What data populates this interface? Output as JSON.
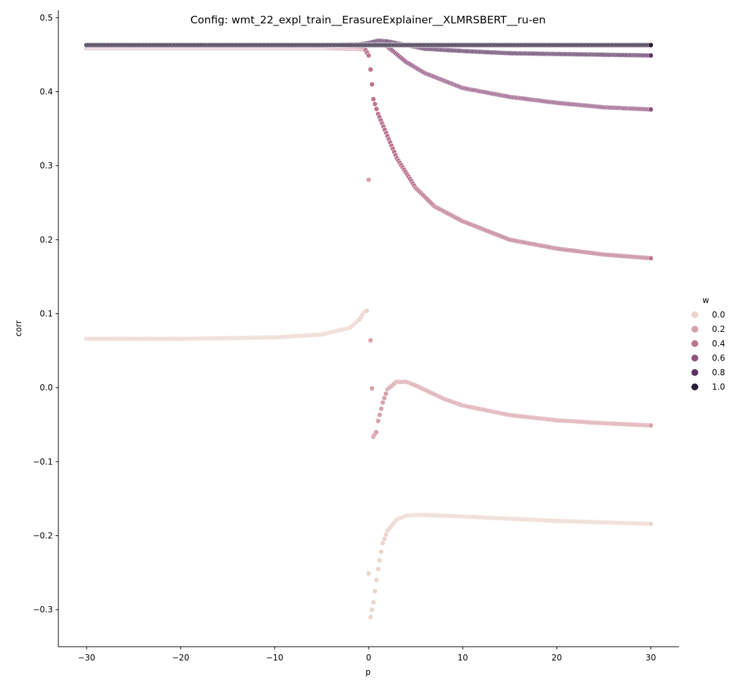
{
  "chart_data": {
    "type": "scatter",
    "title": "Config: wmt_22_expl_train__ErasureExplainer__XLMRSBERT__ru-en",
    "xlabel": "p",
    "ylabel": "corr",
    "xlim": [
      -33,
      33
    ],
    "ylim": [
      -0.35,
      0.51
    ],
    "xticks": [
      -30,
      -20,
      -10,
      0,
      10,
      20,
      30
    ],
    "xtick_labels": [
      "−30",
      "−20",
      "−10",
      "0",
      "10",
      "20",
      "30"
    ],
    "yticks": [
      -0.3,
      -0.2,
      -0.1,
      0.0,
      0.1,
      0.2,
      0.3,
      0.4,
      0.5
    ],
    "ytick_labels": [
      "−0.3",
      "−0.2",
      "−0.1",
      "0.0",
      "0.1",
      "0.2",
      "0.3",
      "0.4",
      "0.5"
    ],
    "grid": false,
    "legend": {
      "title": "w",
      "placement": "right",
      "entries": [
        {
          "label": "0.0",
          "color": "#ebd4cc"
        },
        {
          "label": "0.2",
          "color": "#d9a2aa"
        },
        {
          "label": "0.4",
          "color": "#bd7591"
        },
        {
          "label": "0.6",
          "color": "#935380"
        },
        {
          "label": "0.8",
          "color": "#5c3462"
        },
        {
          "label": "1.0",
          "color": "#2a1c39"
        }
      ]
    },
    "series": [
      {
        "name": "0.0",
        "color": "#ebd4cc",
        "x": [
          -30,
          -20,
          -10,
          -5,
          -2,
          -1,
          -0.5,
          -0.2,
          0,
          0.2,
          0.5,
          1,
          1.5,
          2,
          3,
          4,
          5,
          6,
          8,
          10,
          15,
          20,
          25,
          30
        ],
        "y": [
          0.066,
          0.066,
          0.068,
          0.072,
          0.081,
          0.092,
          0.102,
          0.104,
          -0.251,
          -0.31,
          -0.29,
          -0.245,
          -0.21,
          -0.193,
          -0.178,
          -0.173,
          -0.172,
          -0.172,
          -0.173,
          -0.174,
          -0.177,
          -0.18,
          -0.182,
          -0.184
        ]
      },
      {
        "name": "0.2",
        "color": "#d9a2aa",
        "x": [
          -30,
          -20,
          -10,
          -5,
          -2,
          -1,
          -0.5,
          -0.2,
          0,
          0.2,
          0.5,
          0.8,
          1,
          1.5,
          2,
          3,
          4,
          5,
          8,
          10,
          15,
          20,
          25,
          30
        ],
        "y": [
          0.459,
          0.459,
          0.459,
          0.459,
          0.458,
          0.458,
          0.457,
          0.452,
          0.281,
          0.064,
          -0.066,
          -0.06,
          -0.045,
          -0.02,
          -0.002,
          0.008,
          0.008,
          0.003,
          -0.015,
          -0.024,
          -0.037,
          -0.044,
          -0.048,
          -0.051
        ]
      },
      {
        "name": "0.4",
        "color": "#bd7591",
        "x": [
          -30,
          -20,
          -10,
          -5,
          -2,
          -1,
          -0.5,
          0,
          0.2,
          0.5,
          1,
          2,
          3,
          5,
          7,
          10,
          15,
          20,
          25,
          30
        ],
        "y": [
          0.461,
          0.461,
          0.461,
          0.461,
          0.461,
          0.461,
          0.46,
          0.449,
          0.43,
          0.39,
          0.37,
          0.34,
          0.31,
          0.27,
          0.245,
          0.225,
          0.2,
          0.188,
          0.18,
          0.175
        ]
      },
      {
        "name": "0.6",
        "color": "#935380",
        "x": [
          -30,
          -20,
          -10,
          -5,
          -1,
          0,
          1,
          2,
          4,
          6,
          10,
          15,
          20,
          25,
          30
        ],
        "y": [
          0.462,
          0.462,
          0.462,
          0.462,
          0.463,
          0.465,
          0.466,
          0.461,
          0.44,
          0.425,
          0.405,
          0.393,
          0.385,
          0.379,
          0.376
        ]
      },
      {
        "name": "0.8",
        "color": "#5c3462",
        "x": [
          -30,
          -20,
          -10,
          -5,
          -1,
          0,
          1,
          2,
          4,
          6,
          10,
          15,
          20,
          25,
          30
        ],
        "y": [
          0.463,
          0.463,
          0.463,
          0.463,
          0.464,
          0.466,
          0.469,
          0.468,
          0.463,
          0.458,
          0.455,
          0.452,
          0.451,
          0.45,
          0.449
        ]
      },
      {
        "name": "1.0",
        "color": "#2a1c39",
        "x": [
          -30,
          -20,
          -10,
          0,
          10,
          20,
          30
        ],
        "y": [
          0.463,
          0.463,
          0.463,
          0.463,
          0.463,
          0.463,
          0.463
        ]
      }
    ]
  }
}
